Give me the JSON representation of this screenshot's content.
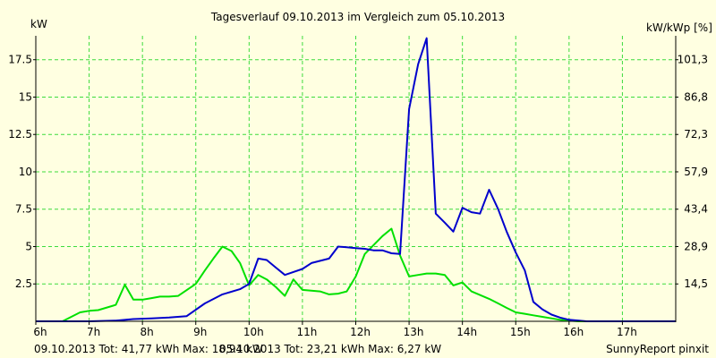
{
  "chart_data": {
    "type": "line",
    "title": "Tagesverlauf 09.10.2013 im Vergleich zum 05.10.2013",
    "ylabel_left": "kW",
    "ylabel_right": "kW/kWp [%]",
    "xlim": [
      6,
      18
    ],
    "ylim": [
      0,
      19.1
    ],
    "x_ticks": [
      {
        "x": 6,
        "label": "6h"
      },
      {
        "x": 7,
        "label": "7h"
      },
      {
        "x": 8,
        "label": "8h"
      },
      {
        "x": 9,
        "label": "9h"
      },
      {
        "x": 10,
        "label": "10h"
      },
      {
        "x": 11,
        "label": "11h"
      },
      {
        "x": 12,
        "label": "12h"
      },
      {
        "x": 13,
        "label": "13h"
      },
      {
        "x": 14,
        "label": "14h"
      },
      {
        "x": 15,
        "label": "15h"
      },
      {
        "x": 16,
        "label": "16h"
      },
      {
        "x": 17,
        "label": "17h"
      }
    ],
    "y_ticks_left": [
      {
        "y": 2.5,
        "label": "2.5"
      },
      {
        "y": 5,
        "label": "5"
      },
      {
        "y": 7.5,
        "label": "7.5"
      },
      {
        "y": 10,
        "label": "10"
      },
      {
        "y": 12.5,
        "label": "12.5"
      },
      {
        "y": 15,
        "label": "15"
      },
      {
        "y": 17.5,
        "label": "17.5"
      }
    ],
    "y_ticks_right": [
      {
        "y": 2.5,
        "label": "14,5"
      },
      {
        "y": 5,
        "label": "28,9"
      },
      {
        "y": 7.5,
        "label": "43,4"
      },
      {
        "y": 10,
        "label": "57,9"
      },
      {
        "y": 12.5,
        "label": "72,3"
      },
      {
        "y": 15,
        "label": "86,8"
      },
      {
        "y": 17.5,
        "label": "101,3"
      }
    ],
    "grid": true,
    "legend_position": "bottom-left",
    "series": [
      {
        "name": "09.10.2013 Tot: 41,77 kWh Max: 18,94 kW",
        "color": "#0000cc",
        "points": [
          [
            6.0,
            0
          ],
          [
            6.5,
            0
          ],
          [
            7.0,
            0
          ],
          [
            7.5,
            0.05
          ],
          [
            7.83,
            0.15
          ],
          [
            8.17,
            0.2
          ],
          [
            8.5,
            0.25
          ],
          [
            8.83,
            0.35
          ],
          [
            9.17,
            1.2
          ],
          [
            9.5,
            1.8
          ],
          [
            9.83,
            2.15
          ],
          [
            10.0,
            2.5
          ],
          [
            10.17,
            4.2
          ],
          [
            10.33,
            4.1
          ],
          [
            10.5,
            3.6
          ],
          [
            10.67,
            3.1
          ],
          [
            10.83,
            3.3
          ],
          [
            11.0,
            3.5
          ],
          [
            11.17,
            3.9
          ],
          [
            11.5,
            4.2
          ],
          [
            11.67,
            5.0
          ],
          [
            11.83,
            4.95
          ],
          [
            12.0,
            4.9
          ],
          [
            12.17,
            4.85
          ],
          [
            12.33,
            4.75
          ],
          [
            12.5,
            4.75
          ],
          [
            12.67,
            4.55
          ],
          [
            12.83,
            4.5
          ],
          [
            13.0,
            14.2
          ],
          [
            13.17,
            17.2
          ],
          [
            13.33,
            18.94
          ],
          [
            13.5,
            7.2
          ],
          [
            13.67,
            6.6
          ],
          [
            13.83,
            6.0
          ],
          [
            14.0,
            7.6
          ],
          [
            14.17,
            7.3
          ],
          [
            14.33,
            7.2
          ],
          [
            14.5,
            8.8
          ],
          [
            14.67,
            7.5
          ],
          [
            14.83,
            6.0
          ],
          [
            15.0,
            4.6
          ],
          [
            15.17,
            3.4
          ],
          [
            15.33,
            1.3
          ],
          [
            15.5,
            0.8
          ],
          [
            15.67,
            0.45
          ],
          [
            15.83,
            0.25
          ],
          [
            16.0,
            0.1
          ],
          [
            16.33,
            0
          ],
          [
            17.0,
            0
          ],
          [
            18.0,
            0
          ]
        ]
      },
      {
        "name": "05.10.2013 Tot: 23,21 kWh Max: 6,27 kW",
        "color": "#00e000",
        "points": [
          [
            6.0,
            0
          ],
          [
            6.5,
            0
          ],
          [
            6.83,
            0.6
          ],
          [
            7.0,
            0.7
          ],
          [
            7.17,
            0.75
          ],
          [
            7.5,
            1.1
          ],
          [
            7.67,
            2.45
          ],
          [
            7.83,
            1.45
          ],
          [
            8.0,
            1.45
          ],
          [
            8.17,
            1.55
          ],
          [
            8.33,
            1.65
          ],
          [
            8.5,
            1.65
          ],
          [
            8.67,
            1.7
          ],
          [
            9.0,
            2.5
          ],
          [
            9.17,
            3.4
          ],
          [
            9.33,
            4.2
          ],
          [
            9.5,
            5.0
          ],
          [
            9.67,
            4.7
          ],
          [
            9.83,
            3.9
          ],
          [
            10.0,
            2.4
          ],
          [
            10.17,
            3.1
          ],
          [
            10.33,
            2.8
          ],
          [
            10.5,
            2.3
          ],
          [
            10.67,
            1.7
          ],
          [
            10.83,
            2.8
          ],
          [
            11.0,
            2.1
          ],
          [
            11.33,
            2.0
          ],
          [
            11.5,
            1.8
          ],
          [
            11.67,
            1.85
          ],
          [
            11.83,
            2.0
          ],
          [
            12.0,
            3.0
          ],
          [
            12.17,
            4.5
          ],
          [
            12.5,
            5.7
          ],
          [
            12.67,
            6.2
          ],
          [
            12.83,
            4.4
          ],
          [
            13.0,
            3.0
          ],
          [
            13.17,
            3.1
          ],
          [
            13.33,
            3.2
          ],
          [
            13.5,
            3.2
          ],
          [
            13.67,
            3.1
          ],
          [
            13.83,
            2.4
          ],
          [
            14.0,
            2.6
          ],
          [
            14.17,
            2.0
          ],
          [
            14.5,
            1.5
          ],
          [
            14.67,
            1.2
          ],
          [
            14.83,
            0.9
          ],
          [
            15.0,
            0.6
          ],
          [
            15.17,
            0.5
          ],
          [
            15.33,
            0.4
          ],
          [
            15.5,
            0.3
          ],
          [
            15.67,
            0.2
          ],
          [
            15.83,
            0.1
          ],
          [
            16.0,
            0.05
          ],
          [
            16.17,
            0
          ],
          [
            17.0,
            0
          ],
          [
            18.0,
            0
          ]
        ]
      }
    ]
  },
  "footer": {
    "credit": "SunnyReport pinxit"
  },
  "colors": {
    "background": "#ffffe1",
    "grid": "#3cdc3c",
    "axis": "#000000"
  }
}
